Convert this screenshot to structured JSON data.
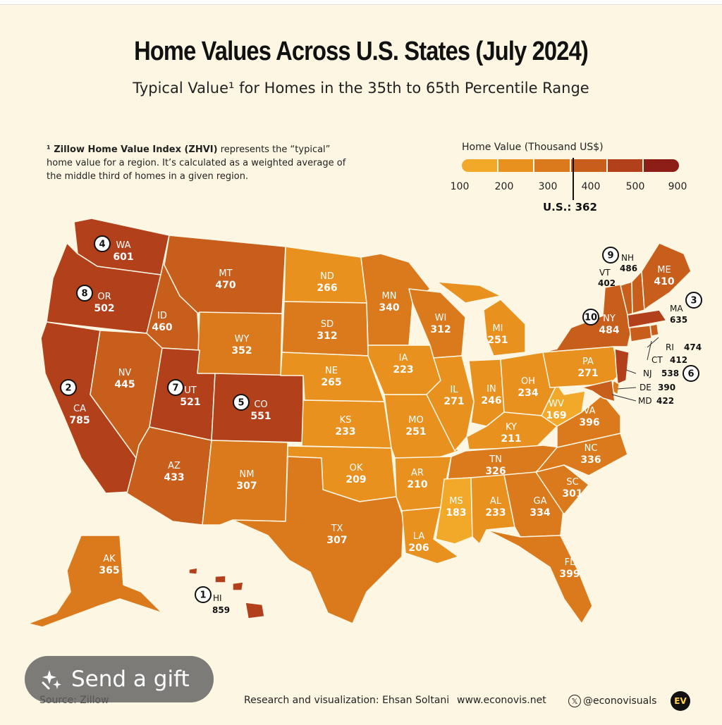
{
  "title": "Home Values Across U.S. States (July 2024)",
  "subtitle": "Typical Value¹ for Homes in the 35th to 65th Percentile Range",
  "footnote": {
    "term": "¹ Zillow Home Value Index (ZHVI)",
    "text": " represents the “typical” home value for a region. It’s calculated as a weighted average of the middle third of homes in a given region."
  },
  "legend": {
    "title": "Home Value (Thousand US$)",
    "ticks": [
      "100",
      "200",
      "300",
      "400",
      "500",
      "900"
    ],
    "tick_values": [
      100,
      200,
      300,
      400,
      500,
      900
    ],
    "colors": [
      "#f2a92a",
      "#e8911f",
      "#da7a1c",
      "#c85e1c",
      "#b1401b",
      "#8c1d17"
    ],
    "us_label": "U.S.: 362",
    "us_value": 362
  },
  "map": {
    "states": [
      {
        "abbr": "WA",
        "value": "601",
        "rank": "4"
      },
      {
        "abbr": "OR",
        "value": "502",
        "rank": "8"
      },
      {
        "abbr": "CA",
        "value": "785",
        "rank": "2"
      },
      {
        "abbr": "NV",
        "value": "445"
      },
      {
        "abbr": "ID",
        "value": "460"
      },
      {
        "abbr": "MT",
        "value": "470"
      },
      {
        "abbr": "WY",
        "value": "352"
      },
      {
        "abbr": "UT",
        "value": "521",
        "rank": "7"
      },
      {
        "abbr": "CO",
        "value": "551",
        "rank": "5"
      },
      {
        "abbr": "AZ",
        "value": "433"
      },
      {
        "abbr": "NM",
        "value": "307"
      },
      {
        "abbr": "ND",
        "value": "266"
      },
      {
        "abbr": "SD",
        "value": "312"
      },
      {
        "abbr": "NE",
        "value": "265"
      },
      {
        "abbr": "KS",
        "value": "233"
      },
      {
        "abbr": "OK",
        "value": "209"
      },
      {
        "abbr": "TX",
        "value": "307"
      },
      {
        "abbr": "MN",
        "value": "340"
      },
      {
        "abbr": "IA",
        "value": "223"
      },
      {
        "abbr": "MO",
        "value": "251"
      },
      {
        "abbr": "AR",
        "value": "210"
      },
      {
        "abbr": "LA",
        "value": "206"
      },
      {
        "abbr": "WI",
        "value": "312"
      },
      {
        "abbr": "IL",
        "value": "271"
      },
      {
        "abbr": "MI",
        "value": "251"
      },
      {
        "abbr": "IN",
        "value": "246"
      },
      {
        "abbr": "OH",
        "value": "234"
      },
      {
        "abbr": "KY",
        "value": "211"
      },
      {
        "abbr": "TN",
        "value": "326"
      },
      {
        "abbr": "MS",
        "value": "183"
      },
      {
        "abbr": "AL",
        "value": "233"
      },
      {
        "abbr": "GA",
        "value": "334"
      },
      {
        "abbr": "FL",
        "value": "399"
      },
      {
        "abbr": "SC",
        "value": "301"
      },
      {
        "abbr": "NC",
        "value": "336"
      },
      {
        "abbr": "VA",
        "value": "396"
      },
      {
        "abbr": "WV",
        "value": "169"
      },
      {
        "abbr": "PA",
        "value": "271"
      },
      {
        "abbr": "NY",
        "value": "484",
        "rank": "10"
      },
      {
        "abbr": "VT",
        "value": "402"
      },
      {
        "abbr": "NH",
        "value": "486",
        "rank": "9"
      },
      {
        "abbr": "ME",
        "value": "410"
      },
      {
        "abbr": "MA",
        "value": "635",
        "rank": "3"
      },
      {
        "abbr": "RI",
        "value": "474"
      },
      {
        "abbr": "CT",
        "value": "412"
      },
      {
        "abbr": "NJ",
        "value": "538",
        "rank": "6"
      },
      {
        "abbr": "DE",
        "value": "390"
      },
      {
        "abbr": "MD",
        "value": "422"
      },
      {
        "abbr": "AK",
        "value": "365"
      },
      {
        "abbr": "HI",
        "value": "859",
        "rank": "1"
      }
    ]
  },
  "gift_button": {
    "label": "Send a gift",
    "icon": "gift-sparkle-icon"
  },
  "credits": {
    "source": "Source: Zillow",
    "author": "Research and visualization: Ehsan Soltani",
    "website": "www.econovis.net",
    "handle": "@econovisuals",
    "logo_text": "EV"
  }
}
